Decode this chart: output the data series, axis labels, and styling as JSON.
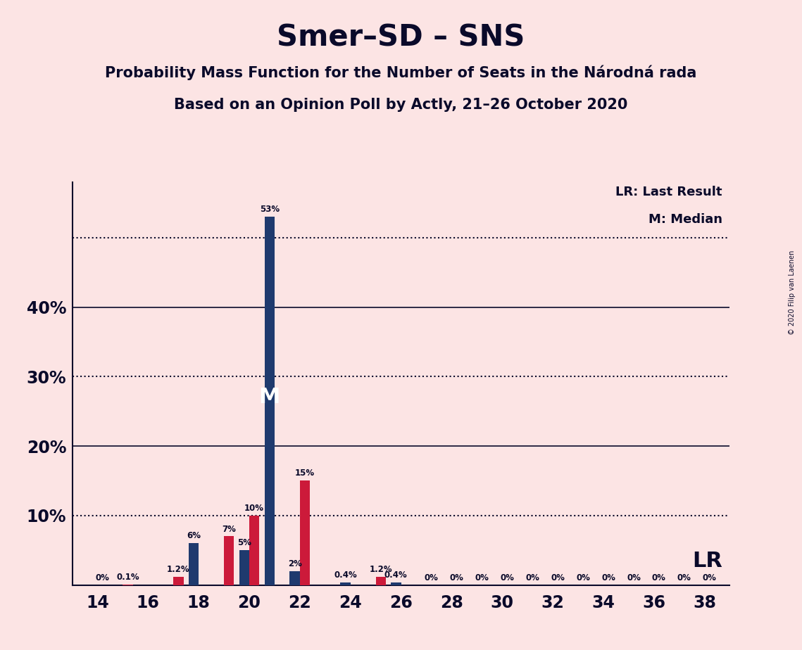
{
  "title": "Smer–SD – SNS",
  "subtitle1": "Probability Mass Function for the Number of Seats in the Národná rada",
  "subtitle2": "Based on an Opinion Poll by Actly, 21–26 October 2020",
  "copyright": "© 2020 Filip van Laenen",
  "seats": [
    14,
    15,
    16,
    17,
    18,
    19,
    20,
    21,
    22,
    23,
    24,
    25,
    26,
    27,
    28,
    29,
    30,
    31,
    32,
    33,
    34,
    35,
    36,
    37,
    38
  ],
  "blue_values": [
    0.0,
    0.0,
    0.0,
    0.0,
    6.0,
    0.0,
    5.0,
    53.0,
    2.0,
    0.0,
    0.4,
    0.0,
    0.4,
    0.0,
    0.0,
    0.0,
    0.0,
    0.0,
    0.0,
    0.0,
    0.0,
    0.0,
    0.0,
    0.0,
    0.0
  ],
  "red_values": [
    0.0,
    0.1,
    0.0,
    1.2,
    0.0,
    7.0,
    10.0,
    0.0,
    15.0,
    0.0,
    0.0,
    1.2,
    0.0,
    0.0,
    0.0,
    0.0,
    0.0,
    0.0,
    0.0,
    0.0,
    0.0,
    0.0,
    0.0,
    0.0,
    0.0
  ],
  "blue_labels": [
    "",
    "",
    "",
    "",
    "6%",
    "",
    "5%",
    "53%",
    "2%",
    "",
    "0.4%",
    "",
    "0.4%",
    "",
    "",
    "",
    "",
    "",
    "",
    "",
    "",
    "",
    "",
    "",
    ""
  ],
  "red_labels": [
    "0%",
    "0.1%",
    "",
    "1.2%",
    "",
    "7%",
    "10%",
    "",
    "15%",
    "",
    "",
    "1.2%",
    "",
    "0%",
    "0%",
    "0%",
    "0%",
    "0%",
    "0%",
    "0%",
    "0%",
    "0%",
    "0%",
    "0%",
    "0%"
  ],
  "xtick_seats": [
    14,
    16,
    18,
    20,
    22,
    24,
    26,
    28,
    30,
    32,
    34,
    36,
    38
  ],
  "blue_color": "#1f3a6e",
  "red_color": "#cc1a3a",
  "bg_color": "#fce4e4",
  "text_color": "#0a0a2a",
  "median_seat": 21,
  "ytick_positions": [
    0,
    10,
    20,
    30,
    40
  ],
  "ytick_labels": [
    "",
    "10%",
    "20%",
    "30%",
    "40%"
  ],
  "dotted_lines": [
    10,
    30,
    50
  ],
  "solid_lines": [
    20,
    40
  ],
  "ymax": 58,
  "legend_lr": "LR: Last Result",
  "legend_m": "M: Median",
  "lr_label": "LR",
  "bar_width": 0.4
}
